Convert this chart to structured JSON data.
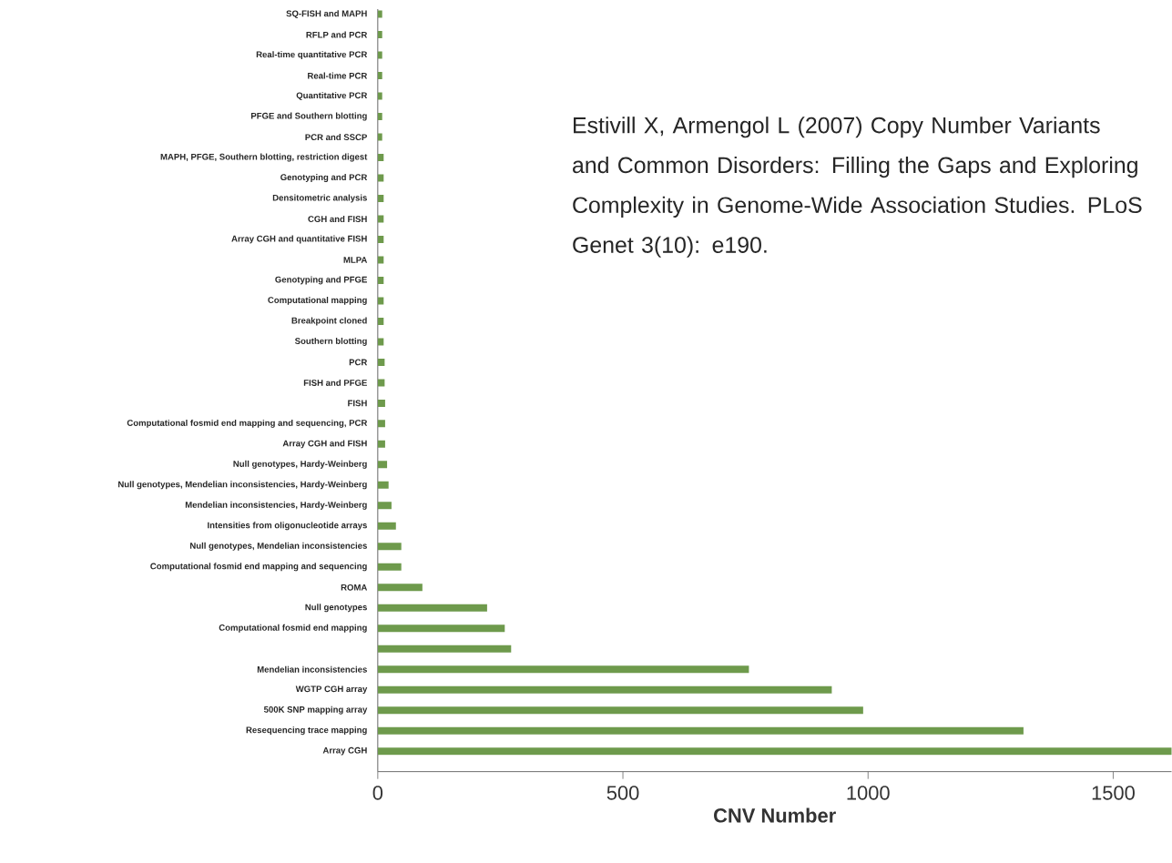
{
  "chart_data": {
    "type": "bar",
    "orientation": "horizontal",
    "xlabel": "CNV Number",
    "categories": [
      "SQ-FISH and MAPH",
      "RFLP and PCR",
      "Real-time quantitative PCR",
      "Real-time PCR",
      "Quantitative PCR",
      "PFGE and Southern blotting",
      "PCR and SSCP",
      "MAPH, PFGE, Southern blotting, restriction digest",
      "Genotyping and PCR",
      "Densitometric analysis",
      "CGH and FISH",
      "Array CGH and quantitative FISH",
      "MLPA",
      "Genotyping and PFGE",
      "Computational mapping",
      "Breakpoint cloned",
      "Southern blotting",
      "PCR",
      "FISH and PFGE",
      "FISH",
      "Computational fosmid end mapping and sequencing, PCR",
      "Array CGH and FISH",
      "Null genotypes, Hardy-Weinberg",
      "Null genotypes, Mendelian inconsistencies, Hardy-Weinberg",
      "Mendelian inconsistencies, Hardy-Weinberg",
      "Intensities from oligonucleotide arrays",
      "Null genotypes, Mendelian inconsistencies",
      "Computational fosmid end mapping and sequencing",
      "ROMA",
      "Null genotypes",
      "Computational fosmid end mapping",
      null,
      "Mendelian inconsistencies",
      "WGTP CGH array",
      "500K SNP mapping array",
      "Resequencing trace mapping",
      "Array CGH"
    ],
    "values": [
      9,
      9,
      9,
      9,
      9,
      9,
      9,
      12,
      12,
      12,
      12,
      12,
      12,
      12,
      12,
      12,
      12,
      14,
      14,
      15,
      15,
      15,
      19,
      22,
      28,
      37,
      48,
      48,
      91,
      223,
      259,
      272,
      757,
      926,
      990,
      1317,
      1619
    ],
    "color": "#6e9a4c",
    "xlim": [
      0,
      1619
    ],
    "xticks": [
      0,
      500,
      1000,
      1500
    ],
    "annotations": [
      "Estivill X, Armengol L (2007) Copy Number Variants and Common Disorders: Filling the Gaps and Exploring Complexity in Genome-Wide Association Studies. PLoS Genet 3(10): e190."
    ]
  }
}
